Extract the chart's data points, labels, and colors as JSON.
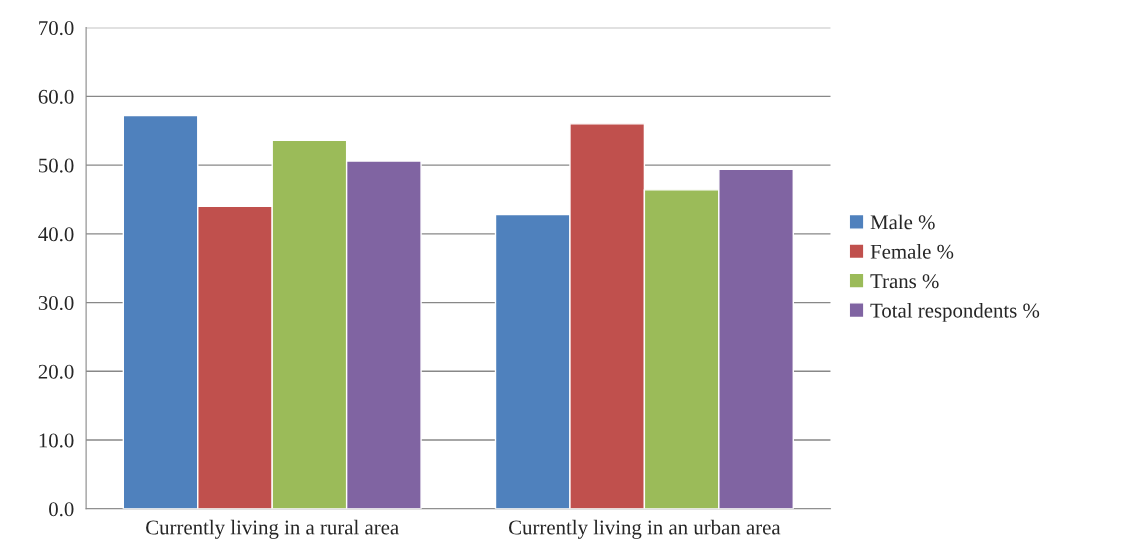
{
  "chart_data": {
    "type": "bar",
    "categories": [
      "Currently living in a rural area",
      "Currently living in an urban area"
    ],
    "series": [
      {
        "name": "Male %",
        "color": "#4f81bd",
        "values": [
          57.2,
          42.8
        ]
      },
      {
        "name": "Female %",
        "color": "#c0504d",
        "values": [
          44.0,
          56.0
        ]
      },
      {
        "name": "Trans %",
        "color": "#9bbb59",
        "values": [
          53.6,
          46.4
        ]
      },
      {
        "name": "Total respondents %",
        "color": "#8064a2",
        "values": [
          50.6,
          49.4
        ]
      }
    ],
    "ylim": [
      0,
      70
    ],
    "yticks": [
      {
        "value": 0,
        "label": "0.0"
      },
      {
        "value": 10,
        "label": "10.0"
      },
      {
        "value": 20,
        "label": "20.0"
      },
      {
        "value": 30,
        "label": "30.0"
      },
      {
        "value": 40,
        "label": "40.0"
      },
      {
        "value": 50,
        "label": "50.0"
      },
      {
        "value": 60,
        "label": "60.0"
      },
      {
        "value": 70,
        "label": "70.0"
      }
    ],
    "grid": "y",
    "legend": "right"
  }
}
